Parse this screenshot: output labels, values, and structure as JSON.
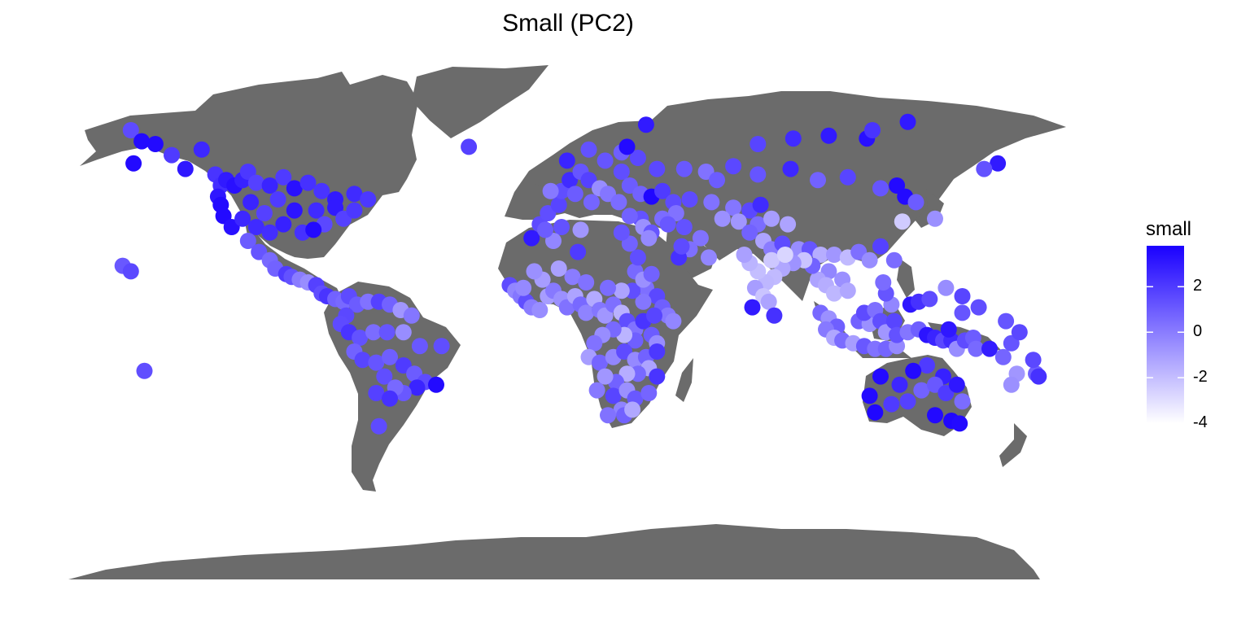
{
  "title": "Small (PC2)",
  "map": {
    "projection": "equirectangular",
    "land_color": "#6b6b6b",
    "ocean_color": "#ffffff",
    "point_radius_px": 10
  },
  "legend": {
    "title": "small",
    "ticks": [
      "2",
      "0",
      "-2",
      "-4"
    ],
    "tick_values": [
      2,
      0,
      -2,
      -4
    ],
    "range": [
      -4,
      3.8
    ],
    "low_color": "#ffffff",
    "high_color": "#1a00ff"
  },
  "chart_data": {
    "type": "scatter",
    "title": "Small (PC2)",
    "color_variable": "small",
    "x_unit": "longitude",
    "y_unit": "latitude",
    "value_range": [
      -4,
      3.8
    ],
    "points": [
      [
        -155,
        70,
        1.5
      ],
      [
        -151,
        66,
        3.5
      ],
      [
        -146,
        65,
        3.5
      ],
      [
        -140,
        61,
        2
      ],
      [
        -154,
        58,
        3.5
      ],
      [
        -129,
        63,
        2.6
      ],
      [
        -135,
        56,
        3.1
      ],
      [
        -124,
        54,
        2.2
      ],
      [
        -122,
        50,
        2.4
      ],
      [
        -120,
        52,
        3
      ],
      [
        -117,
        50,
        3.3
      ],
      [
        -114,
        52,
        2.8
      ],
      [
        -112,
        55,
        2.1
      ],
      [
        -109,
        51,
        1.8
      ],
      [
        -104,
        50,
        2.7
      ],
      [
        -99,
        53,
        2
      ],
      [
        -95,
        49,
        3.3
      ],
      [
        -90,
        51,
        2.3
      ],
      [
        -85,
        48,
        2.2
      ],
      [
        -80,
        45,
        3
      ],
      [
        -73,
        47,
        2.5
      ],
      [
        -68,
        45,
        2.1
      ],
      [
        -123,
        46,
        3.1
      ],
      [
        -122,
        43,
        3.5
      ],
      [
        -121,
        39,
        3.5
      ],
      [
        -118,
        35,
        3.3
      ],
      [
        -114,
        38,
        2.6
      ],
      [
        -111,
        44,
        2.7
      ],
      [
        -109,
        35,
        2.5
      ],
      [
        -106,
        40,
        1.8
      ],
      [
        -101,
        45,
        2
      ],
      [
        -99,
        36,
        2.8
      ],
      [
        -95,
        41,
        3.2
      ],
      [
        -92,
        33,
        2.3
      ],
      [
        -87,
        41,
        2.5
      ],
      [
        -84,
        36,
        1.6
      ],
      [
        -80,
        42,
        3
      ],
      [
        -77,
        38,
        1.8
      ],
      [
        -73,
        41,
        2.1
      ],
      [
        -88,
        34,
        3.5
      ],
      [
        -104,
        33,
        2.4
      ],
      [
        -112,
        30,
        1
      ],
      [
        -108,
        26,
        1.2
      ],
      [
        -104,
        23,
        0.6
      ],
      [
        -102,
        20,
        0.8
      ],
      [
        -98,
        18,
        2
      ],
      [
        -96,
        17,
        1.3
      ],
      [
        -93,
        16,
        0
      ],
      [
        -90,
        15,
        -0.5
      ],
      [
        -87,
        14,
        1.8
      ],
      [
        -85,
        11,
        1.4
      ],
      [
        -83,
        10,
        2.2
      ],
      [
        -80,
        9,
        0.8
      ],
      [
        -77,
        8,
        0.6
      ],
      [
        -75,
        10,
        1.5
      ],
      [
        -72,
        7,
        1
      ],
      [
        -68,
        8,
        0.3
      ],
      [
        -64,
        8,
        1.8
      ],
      [
        -60,
        7,
        0.8
      ],
      [
        -56,
        5,
        -0.8
      ],
      [
        -52,
        3,
        0.2
      ],
      [
        -76,
        3,
        1.6
      ],
      [
        -78,
        0,
        1.5
      ],
      [
        -75,
        -3,
        2.2
      ],
      [
        -71,
        -5,
        1.3
      ],
      [
        -66,
        -3,
        0.5
      ],
      [
        -61,
        -3,
        1.2
      ],
      [
        -55,
        -3,
        -0.5
      ],
      [
        -49,
        -8,
        1.1
      ],
      [
        -41,
        -8,
        1.4
      ],
      [
        -73,
        -10,
        0.8
      ],
      [
        -70,
        -13,
        1.7
      ],
      [
        -65,
        -14,
        1.2
      ],
      [
        -60,
        -12,
        0.9
      ],
      [
        -55,
        -15,
        2
      ],
      [
        -51,
        -18,
        1
      ],
      [
        -47,
        -21,
        1.5
      ],
      [
        -50,
        -23,
        2.7
      ],
      [
        -55,
        -25,
        1.1
      ],
      [
        -62,
        -19,
        1.4
      ],
      [
        -58,
        -23,
        0.6
      ],
      [
        -43,
        -22,
        3.5
      ],
      [
        -65,
        -25,
        1.8
      ],
      [
        -64,
        -37,
        1.5
      ],
      [
        -60,
        -27,
        2.3
      ],
      [
        -158,
        21,
        1.1
      ],
      [
        -155,
        19,
        1.6
      ],
      [
        -150,
        -17,
        1.4
      ],
      [
        34,
        72,
        3
      ],
      [
        -31,
        64,
        1.8
      ],
      [
        -5,
        36,
        1.5
      ],
      [
        -2,
        40,
        1.4
      ],
      [
        2,
        43,
        1.7
      ],
      [
        3,
        48,
        1.4
      ],
      [
        -1,
        48,
        0.1
      ],
      [
        6,
        52,
        2.5
      ],
      [
        10,
        55,
        1.2
      ],
      [
        13,
        52,
        1.8
      ],
      [
        17,
        49,
        -0.5
      ],
      [
        20,
        47,
        0.2
      ],
      [
        24,
        44,
        0.5
      ],
      [
        8,
        47,
        1
      ],
      [
        14,
        44,
        0.7
      ],
      [
        25,
        55,
        1.4
      ],
      [
        28,
        50,
        1
      ],
      [
        32,
        47,
        0.8
      ],
      [
        36,
        46,
        3.6
      ],
      [
        40,
        48,
        2
      ],
      [
        44,
        44,
        1.5
      ],
      [
        45,
        40,
        0.3
      ],
      [
        40,
        38,
        0.5
      ],
      [
        32,
        38,
        1.3
      ],
      [
        28,
        39,
        0.8
      ],
      [
        33,
        35,
        -0.6
      ],
      [
        36,
        33,
        1.2
      ],
      [
        35,
        31,
        -0.4
      ],
      [
        42,
        36,
        1.1
      ],
      [
        48,
        35,
        1.3
      ],
      [
        54,
        31,
        0.3
      ],
      [
        50,
        27,
        0.4
      ],
      [
        46,
        24,
        2.3
      ],
      [
        57,
        24,
        -0.3
      ],
      [
        47,
        28,
        1.5
      ],
      [
        19,
        59,
        1.2
      ],
      [
        25,
        62,
        0.9
      ],
      [
        31,
        60,
        1.6
      ],
      [
        27,
        64,
        3.5
      ],
      [
        13,
        63,
        1.3
      ],
      [
        5,
        59,
        2.7
      ],
      [
        38,
        56,
        1.6
      ],
      [
        48,
        56,
        1.1
      ],
      [
        56,
        55,
        0.3
      ],
      [
        60,
        52,
        1
      ],
      [
        66,
        57,
        1.6
      ],
      [
        75,
        54,
        1.2
      ],
      [
        87,
        56,
        2.6
      ],
      [
        97,
        52,
        0.8
      ],
      [
        108,
        53,
        1.7
      ],
      [
        120,
        49,
        1.2
      ],
      [
        126,
        50,
        3.5
      ],
      [
        129,
        46,
        3.5
      ],
      [
        133,
        44,
        1
      ],
      [
        140,
        38,
        -0.6
      ],
      [
        75,
        65,
        1.7
      ],
      [
        88,
        67,
        2.5
      ],
      [
        101,
        68,
        3
      ],
      [
        115,
        67,
        3.3
      ],
      [
        117,
        70,
        2.2
      ],
      [
        130,
        73,
        3
      ],
      [
        163,
        58,
        3
      ],
      [
        158,
        56,
        1.3
      ],
      [
        128,
        37,
        -2.4
      ],
      [
        50,
        45,
        1.5
      ],
      [
        58,
        44,
        0.3
      ],
      [
        66,
        42,
        0.2
      ],
      [
        72,
        41,
        1.6
      ],
      [
        76,
        43,
        2.5
      ],
      [
        62,
        38,
        -0.6
      ],
      [
        68,
        37,
        -0.8
      ],
      [
        75,
        36,
        0.5
      ],
      [
        80,
        38,
        -1
      ],
      [
        86,
        36,
        -1.2
      ],
      [
        72,
        33,
        0.8
      ],
      [
        77,
        30,
        -1.2
      ],
      [
        80,
        27,
        0
      ],
      [
        84,
        29,
        1.5
      ],
      [
        90,
        27,
        -0.5
      ],
      [
        94,
        27,
        1.2
      ],
      [
        98,
        25,
        -1.5
      ],
      [
        103,
        25,
        -0.8
      ],
      [
        108,
        24,
        -1.9
      ],
      [
        112,
        26,
        0.4
      ],
      [
        116,
        23,
        -0.5
      ],
      [
        120,
        28,
        1.8
      ],
      [
        125,
        23,
        0.5
      ],
      [
        101,
        19,
        -0.3
      ],
      [
        97,
        16,
        -1.2
      ],
      [
        106,
        16,
        -0.6
      ],
      [
        100,
        14,
        -1.5
      ],
      [
        103,
        11,
        -1.8
      ],
      [
        108,
        12,
        -1.3
      ],
      [
        95,
        21,
        0.8
      ],
      [
        92,
        23,
        -2.2
      ],
      [
        88,
        22,
        -0.7
      ],
      [
        84,
        20,
        -1.3
      ],
      [
        81,
        17,
        -1.9
      ],
      [
        78,
        15,
        -1.8
      ],
      [
        74,
        13,
        -1
      ],
      [
        77,
        10,
        -2.2
      ],
      [
        79,
        8,
        -1.2
      ],
      [
        75,
        19,
        -2
      ],
      [
        72,
        22,
        -1.7
      ],
      [
        70,
        25,
        -1.1
      ],
      [
        80,
        23,
        -2.3
      ],
      [
        85,
        25,
        -2.7
      ],
      [
        73,
        6,
        3
      ],
      [
        81,
        3,
        2.3
      ],
      [
        -16,
        14,
        1.5
      ],
      [
        -14,
        12,
        -0.3
      ],
      [
        -12,
        10,
        0.2
      ],
      [
        -10,
        8,
        1.4
      ],
      [
        -8,
        6,
        0
      ],
      [
        -5,
        5,
        -0.5
      ],
      [
        -2,
        10,
        -1
      ],
      [
        0,
        12,
        0.1
      ],
      [
        3,
        9,
        -0.6
      ],
      [
        5,
        6,
        0.3
      ],
      [
        8,
        10,
        -1.2
      ],
      [
        10,
        7,
        0.6
      ],
      [
        12,
        4,
        -0.2
      ],
      [
        15,
        9,
        -1.4
      ],
      [
        17,
        5,
        0.2
      ],
      [
        19,
        3,
        -0.8
      ],
      [
        22,
        7,
        0.4
      ],
      [
        25,
        4,
        -1.6
      ],
      [
        27,
        1,
        1.4
      ],
      [
        30,
        -2,
        0.3
      ],
      [
        33,
        1,
        2.2
      ],
      [
        36,
        -4,
        1
      ],
      [
        38,
        -7,
        -0.5
      ],
      [
        30,
        -6,
        0.9
      ],
      [
        26,
        -4,
        -1.7
      ],
      [
        22,
        -2,
        0.6
      ],
      [
        18,
        -4,
        -0.5
      ],
      [
        15,
        -7,
        0.3
      ],
      [
        13,
        -12,
        -1
      ],
      [
        17,
        -14,
        0.7
      ],
      [
        22,
        -12,
        -0.3
      ],
      [
        26,
        -10,
        1.5
      ],
      [
        30,
        -13,
        -0.4
      ],
      [
        34,
        -12,
        0.8
      ],
      [
        38,
        -10,
        2.1
      ],
      [
        35,
        -16,
        -1.2
      ],
      [
        31,
        -18,
        0.6
      ],
      [
        27,
        -18,
        -1.5
      ],
      [
        23,
        -21,
        0.8
      ],
      [
        19,
        -19,
        -0.8
      ],
      [
        16,
        -24,
        0.1
      ],
      [
        22,
        -26,
        1.7
      ],
      [
        27,
        -24,
        -0.6
      ],
      [
        30,
        -27,
        1.1
      ],
      [
        25,
        -31,
        -0.2
      ],
      [
        20,
        -33,
        0.3
      ],
      [
        26,
        -33,
        0.8
      ],
      [
        29,
        -31,
        -1.3
      ],
      [
        35,
        -25,
        0.7
      ],
      [
        38,
        -19,
        2.2
      ],
      [
        34,
        13,
        0.4
      ],
      [
        38,
        10,
        1.6
      ],
      [
        40,
        6,
        0.9
      ],
      [
        42,
        3,
        0.1
      ],
      [
        44,
        1,
        -0.3
      ],
      [
        37,
        3,
        1.7
      ],
      [
        33,
        8,
        0.2
      ],
      [
        29,
        12,
        1.4
      ],
      [
        25,
        12,
        -1.2
      ],
      [
        20,
        13,
        0.5
      ],
      [
        30,
        19,
        0.6
      ],
      [
        33,
        16,
        -0.6
      ],
      [
        36,
        18,
        0.8
      ],
      [
        31,
        24,
        1.4
      ],
      [
        28,
        29,
        0.8
      ],
      [
        25,
        33,
        1.2
      ],
      [
        10,
        34,
        -0.8
      ],
      [
        3,
        35,
        1.3
      ],
      [
        0,
        30,
        -0.3
      ],
      [
        -8,
        31,
        3
      ],
      [
        -3,
        34,
        1
      ],
      [
        9,
        26,
        2
      ],
      [
        -4,
        16,
        -1
      ],
      [
        -7,
        19,
        -0.6
      ],
      [
        -11,
        13,
        -0.4
      ],
      [
        7,
        17,
        0
      ],
      [
        12,
        15,
        0.3
      ],
      [
        2,
        20,
        -1.1
      ],
      [
        98,
        4,
        0.6
      ],
      [
        101,
        2,
        -0.6
      ],
      [
        104,
        -1,
        0.9
      ],
      [
        100,
        -2,
        0.1
      ],
      [
        103,
        -5,
        -1.3
      ],
      [
        106,
        -6,
        0.5
      ],
      [
        110,
        -7,
        -1
      ],
      [
        114,
        -8,
        1.1
      ],
      [
        118,
        -9,
        0.3
      ],
      [
        122,
        -9,
        0.7
      ],
      [
        126,
        -8,
        -0.4
      ],
      [
        112,
        1,
        0.8
      ],
      [
        116,
        0,
        -0.6
      ],
      [
        114,
        4,
        1.5
      ],
      [
        118,
        5,
        0.4
      ],
      [
        120,
        1,
        1.4
      ],
      [
        122,
        -3,
        -0.8
      ],
      [
        125,
        1,
        1.7
      ],
      [
        124,
        7,
        -0.3
      ],
      [
        122,
        11,
        1.2
      ],
      [
        121,
        15,
        0.5
      ],
      [
        126,
        -4,
        1.3
      ],
      [
        130,
        -3,
        0.2
      ],
      [
        134,
        -2,
        0.9
      ],
      [
        137,
        -4,
        3.2
      ],
      [
        140,
        -5,
        2.7
      ],
      [
        143,
        -6,
        1.6
      ],
      [
        146,
        -6,
        2.5
      ],
      [
        148,
        -9,
        -0.5
      ],
      [
        151,
        -6,
        1.5
      ],
      [
        154,
        -5,
        1
      ],
      [
        145,
        -2,
        3.1
      ],
      [
        150,
        4,
        1.2
      ],
      [
        155,
        -9,
        0.6
      ],
      [
        160,
        -9,
        2.9
      ],
      [
        165,
        -12,
        0.7
      ],
      [
        170,
        -18,
        -0.8
      ],
      [
        177,
        -18,
        0.9
      ],
      [
        176,
        -13,
        1.6
      ],
      [
        168,
        -22,
        -0.6
      ],
      [
        178,
        -19,
        2.3
      ],
      [
        143,
        -19,
        2.8
      ],
      [
        137,
        -15,
        2
      ],
      [
        132,
        -17,
        3.5
      ],
      [
        127,
        -22,
        2.6
      ],
      [
        120,
        -19,
        3.5
      ],
      [
        116,
        -26,
        3.5
      ],
      [
        124,
        -29,
        2
      ],
      [
        118,
        -32,
        3.6
      ],
      [
        130,
        -28,
        1.8
      ],
      [
        135,
        -24,
        0.8
      ],
      [
        140,
        -22,
        1.1
      ],
      [
        144,
        -25,
        2
      ],
      [
        148,
        -22,
        3.1
      ],
      [
        150,
        -28,
        0.5
      ],
      [
        146,
        -35,
        3.6
      ],
      [
        140,
        -33,
        3.5
      ],
      [
        149,
        -36,
        3.5
      ],
      [
        131,
        7,
        3.1
      ],
      [
        134,
        8,
        2.3
      ],
      [
        138,
        9,
        1.5
      ],
      [
        144,
        13,
        -0.5
      ],
      [
        156,
        6,
        1.4
      ],
      [
        150,
        10,
        1.7
      ],
      [
        168,
        -7,
        1.2
      ],
      [
        171,
        -3,
        1.6
      ],
      [
        166,
        1,
        1.2
      ]
    ]
  }
}
